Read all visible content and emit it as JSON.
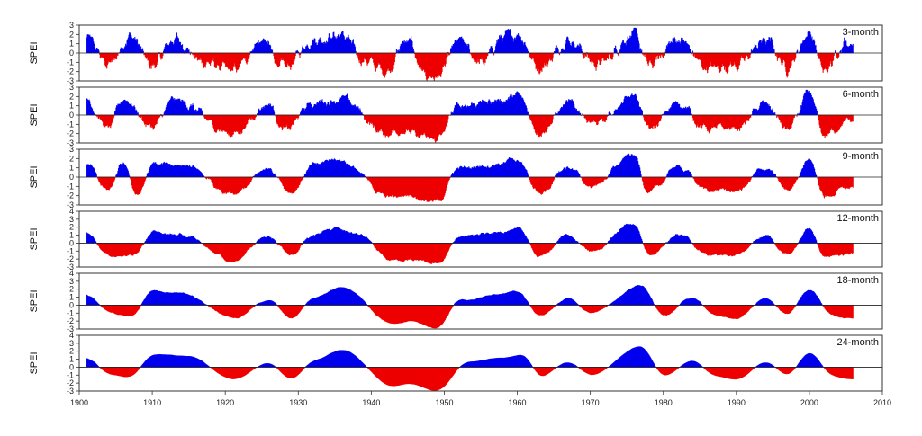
{
  "chart_data": {
    "type": "area",
    "x_axis": {
      "range": [
        1900,
        2010
      ],
      "ticks": [
        1900,
        1910,
        1920,
        1930,
        1940,
        1950,
        1960,
        1970,
        1980,
        1990,
        2000,
        2010
      ],
      "data_range": [
        1901,
        2006
      ]
    },
    "colors": {
      "positive": "#0000ee",
      "negative": "#ee0000"
    },
    "panels": [
      {
        "label": "3-month",
        "ylabel": "SPEI",
        "ylim": [
          -3,
          3
        ],
        "yticks": [
          3,
          2,
          1,
          0,
          -1,
          -2,
          -3
        ],
        "series": [
          [
            1901,
            1.6
          ],
          [
            1904,
            -1.2
          ],
          [
            1907,
            1.8
          ],
          [
            1910,
            -1.4
          ],
          [
            1913,
            1.5
          ],
          [
            1917,
            -1.0
          ],
          [
            1921,
            -1.9
          ],
          [
            1925,
            1.3
          ],
          [
            1928,
            -1.6
          ],
          [
            1932,
            1.4
          ],
          [
            1936,
            1.9
          ],
          [
            1939,
            -0.8
          ],
          [
            1942,
            -1.9
          ],
          [
            1945,
            1.6
          ],
          [
            1947,
            -2.3
          ],
          [
            1949,
            -2.6
          ],
          [
            1952,
            1.3
          ],
          [
            1955,
            -1.1
          ],
          [
            1958,
            1.7
          ],
          [
            1960,
            2.1
          ],
          [
            1963,
            -1.6
          ],
          [
            1967,
            1.4
          ],
          [
            1971,
            -1.2
          ],
          [
            1976,
            2.0
          ],
          [
            1978,
            -1.3
          ],
          [
            1982,
            1.5
          ],
          [
            1986,
            -1.6
          ],
          [
            1990,
            -1.3
          ],
          [
            1994,
            1.4
          ],
          [
            1997,
            -1.5
          ],
          [
            2000,
            2.2
          ],
          [
            2002,
            -2.0
          ],
          [
            2005,
            1.2
          ]
        ]
      },
      {
        "label": "6-month",
        "ylabel": "SPEI",
        "ylim": [
          -3,
          3
        ],
        "yticks": [
          3,
          2,
          1,
          0,
          -1,
          -2,
          -3
        ],
        "series": [
          [
            1901,
            1.5
          ],
          [
            1904,
            -1.5
          ],
          [
            1906,
            1.8
          ],
          [
            1910,
            -1.3
          ],
          [
            1913,
            1.6
          ],
          [
            1921,
            -2.0
          ],
          [
            1926,
            1.2
          ],
          [
            1928,
            -1.7
          ],
          [
            1932,
            1.3
          ],
          [
            1936,
            1.7
          ],
          [
            1942,
            -2.0
          ],
          [
            1944,
            -1.6
          ],
          [
            1947,
            -2.4
          ],
          [
            1949,
            -2.6
          ],
          [
            1952,
            1.1
          ],
          [
            1958,
            1.6
          ],
          [
            1960,
            2.1
          ],
          [
            1963,
            -1.8
          ],
          [
            1967,
            1.2
          ],
          [
            1971,
            -1.0
          ],
          [
            1976,
            2.3
          ],
          [
            1978,
            -1.6
          ],
          [
            1982,
            1.3
          ],
          [
            1986,
            -1.5
          ],
          [
            1990,
            -1.4
          ],
          [
            1994,
            1.2
          ],
          [
            1997,
            -1.6
          ],
          [
            2000,
            2.2
          ],
          [
            2002,
            -2.2
          ],
          [
            2005,
            -0.8
          ]
        ]
      },
      {
        "label": "9-month",
        "ylabel": "SPEI",
        "ylim": [
          -3,
          3
        ],
        "yticks": [
          3,
          2,
          1,
          0,
          -1,
          -2,
          -3
        ],
        "series": [
          [
            1901,
            1.5
          ],
          [
            1904,
            -1.6
          ],
          [
            1906,
            1.5
          ],
          [
            1908,
            -2.1
          ],
          [
            1910,
            1.3
          ],
          [
            1914,
            1.4
          ],
          [
            1921,
            -2.0
          ],
          [
            1926,
            1.0
          ],
          [
            1929,
            -1.6
          ],
          [
            1932,
            1.2
          ],
          [
            1935,
            2.0
          ],
          [
            1943,
            -2.2
          ],
          [
            1945,
            -1.8
          ],
          [
            1948,
            -2.5
          ],
          [
            1949,
            -2.7
          ],
          [
            1952,
            1.0
          ],
          [
            1958,
            1.5
          ],
          [
            1960,
            1.9
          ],
          [
            1963,
            -1.8
          ],
          [
            1967,
            1.1
          ],
          [
            1970,
            -1.0
          ],
          [
            1976,
            2.4
          ],
          [
            1978,
            -1.8
          ],
          [
            1982,
            1.2
          ],
          [
            1986,
            -1.4
          ],
          [
            1990,
            -1.5
          ],
          [
            1994,
            1.0
          ],
          [
            1997,
            -1.5
          ],
          [
            2000,
            2.1
          ],
          [
            2002,
            -2.2
          ],
          [
            2005,
            -1.0
          ]
        ]
      },
      {
        "label": "12-month",
        "ylabel": "SPEI",
        "ylim": [
          -3,
          4
        ],
        "yticks": [
          4,
          3,
          2,
          1,
          0,
          -1,
          -2,
          -3
        ],
        "series": [
          [
            1901,
            1.2
          ],
          [
            1904,
            -1.4
          ],
          [
            1907,
            -1.6
          ],
          [
            1910,
            1.3
          ],
          [
            1914,
            1.0
          ],
          [
            1921,
            -2.2
          ],
          [
            1926,
            0.9
          ],
          [
            1929,
            -1.4
          ],
          [
            1932,
            1.0
          ],
          [
            1935,
            1.8
          ],
          [
            1938,
            1.2
          ],
          [
            1943,
            -2.1
          ],
          [
            1945,
            -1.9
          ],
          [
            1948,
            -2.4
          ],
          [
            1949,
            -2.7
          ],
          [
            1952,
            0.9
          ],
          [
            1958,
            1.4
          ],
          [
            1960,
            1.9
          ],
          [
            1963,
            -1.7
          ],
          [
            1967,
            1.0
          ],
          [
            1970,
            -1.1
          ],
          [
            1976,
            2.6
          ],
          [
            1978,
            -1.7
          ],
          [
            1982,
            1.1
          ],
          [
            1986,
            -1.3
          ],
          [
            1990,
            -1.6
          ],
          [
            1994,
            0.9
          ],
          [
            1997,
            -1.5
          ],
          [
            2000,
            2.0
          ],
          [
            2002,
            -1.8
          ],
          [
            2005,
            -1.3
          ]
        ]
      },
      {
        "label": "18-month",
        "ylabel": "SPEI",
        "ylim": [
          -3,
          4
        ],
        "yticks": [
          4,
          3,
          2,
          1,
          0,
          -1,
          -2,
          -3
        ],
        "series": [
          [
            1901,
            1.4
          ],
          [
            1904,
            -0.8
          ],
          [
            1907,
            -1.5
          ],
          [
            1910,
            1.8
          ],
          [
            1914,
            1.5
          ],
          [
            1921,
            -1.6
          ],
          [
            1926,
            0.7
          ],
          [
            1929,
            -1.8
          ],
          [
            1932,
            0.9
          ],
          [
            1936,
            2.3
          ],
          [
            1943,
            -2.3
          ],
          [
            1945,
            -1.9
          ],
          [
            1949,
            -3.0
          ],
          [
            1952,
            0.7
          ],
          [
            1958,
            1.3
          ],
          [
            1960,
            1.8
          ],
          [
            1963,
            -1.4
          ],
          [
            1967,
            0.8
          ],
          [
            1970,
            -1.0
          ],
          [
            1977,
            2.5
          ],
          [
            1980,
            -1.3
          ],
          [
            1984,
            1.0
          ],
          [
            1987,
            -1.2
          ],
          [
            1990,
            -1.7
          ],
          [
            1994,
            0.8
          ],
          [
            1997,
            -1.2
          ],
          [
            2000,
            2.1
          ],
          [
            2003,
            -1.2
          ],
          [
            2005,
            -1.5
          ]
        ]
      },
      {
        "label": "24-month",
        "ylabel": "SPEI",
        "ylim": [
          -3,
          4
        ],
        "yticks": [
          4,
          3,
          2,
          1,
          0,
          -1,
          -2,
          -3
        ],
        "series": [
          [
            1901,
            1.3
          ],
          [
            1904,
            -0.9
          ],
          [
            1907,
            -1.3
          ],
          [
            1910,
            1.6
          ],
          [
            1915,
            1.4
          ],
          [
            1921,
            -1.5
          ],
          [
            1926,
            0.6
          ],
          [
            1929,
            -1.6
          ],
          [
            1932,
            0.8
          ],
          [
            1936,
            2.2
          ],
          [
            1943,
            -2.4
          ],
          [
            1945,
            -2.0
          ],
          [
            1949,
            -3.0
          ],
          [
            1953,
            0.6
          ],
          [
            1958,
            1.2
          ],
          [
            1961,
            1.6
          ],
          [
            1963,
            -1.3
          ],
          [
            1967,
            0.7
          ],
          [
            1970,
            -1.0
          ],
          [
            1977,
            2.7
          ],
          [
            1980,
            -1.2
          ],
          [
            1984,
            0.9
          ],
          [
            1987,
            -1.1
          ],
          [
            1990,
            -1.6
          ],
          [
            1994,
            0.7
          ],
          [
            1997,
            -1.1
          ],
          [
            2000,
            2.0
          ],
          [
            2003,
            -1.0
          ],
          [
            2005,
            -1.5
          ]
        ]
      }
    ]
  }
}
